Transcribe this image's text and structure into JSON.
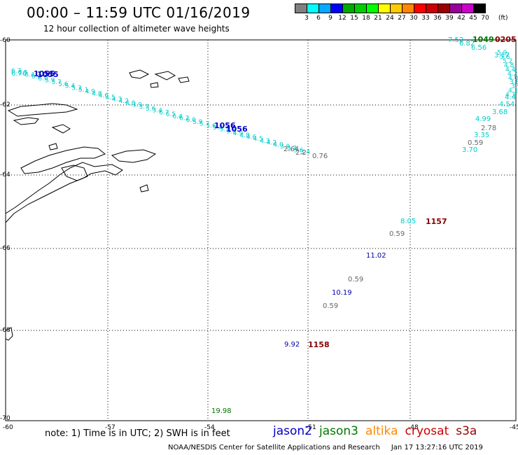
{
  "header": {
    "title": "00:00 – 11:59 UTC 01/16/2019",
    "subtitle": "12 hour collection of altimeter wave heights"
  },
  "legend": {
    "colors": [
      "#808080",
      "#00ffff",
      "#00aaff",
      "#0000ff",
      "#00aa00",
      "#00cc00",
      "#00ff00",
      "#ffff00",
      "#ffcc00",
      "#ff8800",
      "#ff0000",
      "#cc0000",
      "#990000",
      "#990099",
      "#cc00cc",
      "#000000"
    ],
    "tick_labels": [
      "3",
      "6",
      "9",
      "12",
      "15",
      "18",
      "21",
      "24",
      "27",
      "30",
      "33",
      "36",
      "39",
      "42",
      "45",
      "70"
    ],
    "unit": "(ft)"
  },
  "map": {
    "lat_labels": [
      "-60",
      "-62",
      "-64",
      "-66",
      "-68",
      "-70"
    ],
    "lon_labels": [
      "-60",
      "-57",
      "-54",
      "-51",
      "-48",
      "-45"
    ],
    "track_labels": [
      {
        "text": "1055",
        "color": "#0000cc"
      },
      {
        "text": "1056",
        "color": "#0000cc"
      },
      {
        "text": "1157",
        "color": "#880000"
      },
      {
        "text": "1158",
        "color": "#880000"
      },
      {
        "text": "1049",
        "color": "#007700"
      },
      {
        "text": "0205",
        "color": "#880000"
      }
    ],
    "observations": [
      {
        "value": "7.52",
        "color": "#00cccc"
      },
      {
        "value": "6.82",
        "color": "#00cccc"
      },
      {
        "value": "6.56",
        "color": "#00cccc"
      },
      {
        "value": "3.17",
        "color": "#00cccc"
      },
      {
        "value": "4.4",
        "color": "#00cccc"
      },
      {
        "value": "4.54",
        "color": "#00cccc"
      },
      {
        "value": "3.68",
        "color": "#00cccc"
      },
      {
        "value": "4.99",
        "color": "#00cccc"
      },
      {
        "value": "2.78",
        "color": "#666666"
      },
      {
        "value": "3.35",
        "color": "#00cccc"
      },
      {
        "value": "0.59",
        "color": "#666666"
      },
      {
        "value": "3.70",
        "color": "#00cccc"
      },
      {
        "value": "8.05",
        "color": "#00cccc"
      },
      {
        "value": "0.59",
        "color": "#666666"
      },
      {
        "value": "11.02",
        "color": "#0000aa"
      },
      {
        "value": "0.59",
        "color": "#666666"
      },
      {
        "value": "10.19",
        "color": "#0000aa"
      },
      {
        "value": "0.59",
        "color": "#666666"
      },
      {
        "value": "9.92",
        "color": "#0000aa"
      },
      {
        "value": "19.98",
        "color": "#007700"
      },
      {
        "value": "6.76",
        "color": "#00cccc"
      },
      {
        "value": "2.64",
        "color": "#666666"
      },
      {
        "value": "2.2",
        "color": "#666666"
      },
      {
        "value": "0.76",
        "color": "#666666"
      }
    ],
    "track_text_color": "#00cccc"
  },
  "footer": {
    "note": "note: 1) Time is in UTC; 2) SWH is in feet",
    "satellites": [
      {
        "name": "jason2",
        "color": "#0000cc"
      },
      {
        "name": "jason3",
        "color": "#007700"
      },
      {
        "name": "altika",
        "color": "#ff8800"
      },
      {
        "name": "cryosat",
        "color": "#cc0000"
      },
      {
        "name": "s3a",
        "color": "#990000"
      }
    ],
    "credit": "NOAA/NESDIS Center for Satellite Applications and Research",
    "timestamp": "Jan 17 13:27:16 UTC 2019"
  }
}
